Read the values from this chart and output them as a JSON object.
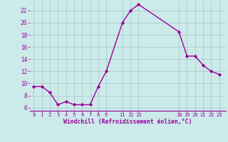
{
  "xlabel": "Windchill (Refroidissement éolien,°C)",
  "x_values": [
    0,
    1,
    2,
    3,
    4,
    5,
    6,
    7,
    8,
    9,
    11,
    12,
    13,
    18,
    19,
    20,
    21,
    22,
    23
  ],
  "y_values": [
    9.5,
    9.5,
    8.5,
    6.5,
    7.0,
    6.5,
    6.5,
    6.5,
    9.5,
    12.0,
    20.0,
    22.0,
    23.0,
    18.5,
    14.5,
    14.5,
    13.0,
    12.0,
    11.5
  ],
  "line_color": "#990099",
  "marker": "D",
  "marker_size": 2.2,
  "background_color": "#cceaea",
  "grid_color": "#aacccc",
  "tick_color": "#990099",
  "label_color": "#990099",
  "ylim": [
    5.5,
    23.5
  ],
  "yticks": [
    6,
    8,
    10,
    12,
    14,
    16,
    18,
    20,
    22
  ],
  "xticks": [
    0,
    1,
    2,
    3,
    4,
    5,
    6,
    7,
    8,
    9,
    11,
    12,
    13,
    18,
    19,
    20,
    21,
    22,
    23
  ],
  "xlim": [
    -0.5,
    23.8
  ]
}
